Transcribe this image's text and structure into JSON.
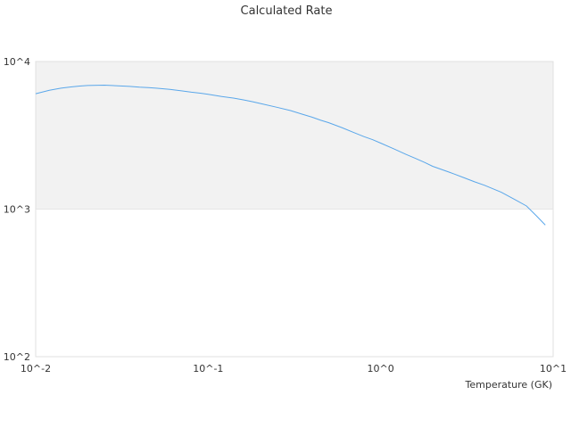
{
  "chart_data": {
    "type": "line",
    "title": "Calculated Rate",
    "xlabel": "Temperature (GK)",
    "ylabel": "",
    "x_scale": "log",
    "y_scale": "log",
    "xlim": [
      0.01,
      10
    ],
    "ylim": [
      100,
      10000
    ],
    "x_ticks": [
      "10^-2",
      "10^-1",
      "10^0",
      "10^1"
    ],
    "y_ticks": [
      "10^4",
      "10^3",
      "10^2"
    ],
    "shaded_band": {
      "y_from": 1000,
      "y_to": 10000,
      "color": "#f2f2f2"
    },
    "line_color": "#5aa7ea",
    "grid": false,
    "series": [
      {
        "x": [
          0.01,
          0.012,
          0.014,
          0.016,
          0.018,
          0.02,
          0.025,
          0.03,
          0.035,
          0.04,
          0.045,
          0.05,
          0.06,
          0.07,
          0.08,
          0.09,
          0.1,
          0.12,
          0.14,
          0.16,
          0.18,
          0.2,
          0.25,
          0.3,
          0.35,
          0.4,
          0.45,
          0.5,
          0.6,
          0.7,
          0.8,
          0.9,
          1.0,
          1.2,
          1.4,
          1.6,
          1.8,
          2.0,
          2.5,
          3.0,
          3.5,
          4.0,
          5.0,
          6.0,
          7.0,
          8.0,
          9.0
        ],
        "y": [
          6050,
          6380,
          6600,
          6730,
          6820,
          6880,
          6920,
          6850,
          6780,
          6700,
          6650,
          6600,
          6470,
          6330,
          6200,
          6100,
          6000,
          5800,
          5650,
          5500,
          5350,
          5200,
          4900,
          4650,
          4400,
          4200,
          4000,
          3850,
          3550,
          3300,
          3100,
          2950,
          2800,
          2550,
          2350,
          2200,
          2070,
          1950,
          1780,
          1640,
          1530,
          1450,
          1300,
          1160,
          1050,
          900,
          780
        ]
      }
    ]
  }
}
